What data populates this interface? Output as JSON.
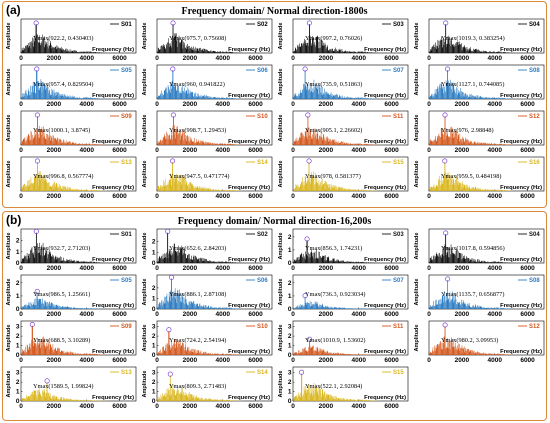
{
  "panels": [
    {
      "label": "(a)",
      "title": "Frequency domain/ Normal direction-1800s",
      "ylabel": "Amplitude",
      "xlabel": "Frequency (Hz)",
      "x_ticks": [
        "0",
        "2000",
        "4000",
        "6000"
      ],
      "cells": [
        {
          "name": "S01",
          "ymax_label": "Ymax(922.2, 0.430403)",
          "peak_x": 922.2,
          "peak_y": 0.430403,
          "y_ticks": [],
          "color": "#111111"
        },
        {
          "name": "S02",
          "ymax_label": "Ymax(975.7, 0.75608)",
          "peak_x": 975.7,
          "peak_y": 0.75608,
          "y_ticks": [],
          "color": "#111111"
        },
        {
          "name": "S03",
          "ymax_label": "Ymax(997.2, 0.76026)",
          "peak_x": 997.2,
          "peak_y": 0.76026,
          "y_ticks": [],
          "color": "#111111"
        },
        {
          "name": "S04",
          "ymax_label": "Ymax(1019.3, 0.383254)",
          "peak_x": 1019.3,
          "peak_y": 0.383254,
          "y_ticks": [],
          "color": "#111111"
        },
        {
          "name": "S05",
          "ymax_label": "Ymax(957.4, 0.829504)",
          "peak_x": 957.4,
          "peak_y": 0.829504,
          "y_ticks": [],
          "color": "#2b7bc2"
        },
        {
          "name": "S06",
          "ymax_label": "Ymax(960, 0.941822)",
          "peak_x": 960,
          "peak_y": 0.941822,
          "y_ticks": [],
          "color": "#2b7bc2"
        },
        {
          "name": "S07",
          "ymax_label": "Ymax(735.9, 0.51863)",
          "peak_x": 735.9,
          "peak_y": 0.51863,
          "y_ticks": [],
          "color": "#2b7bc2"
        },
        {
          "name": "S08",
          "ymax_label": "Ymax(1127.1, 0.744085)",
          "peak_x": 1127.1,
          "peak_y": 0.744085,
          "y_ticks": [],
          "color": "#2b7bc2"
        },
        {
          "name": "S09",
          "ymax_label": "Ymax(1000.1, 3.8745)",
          "peak_x": 1000.1,
          "peak_y": 3.8745,
          "y_ticks": [],
          "color": "#d4561b"
        },
        {
          "name": "S10",
          "ymax_label": "Ymax(998.7, 1.29453)",
          "peak_x": 998.7,
          "peak_y": 1.29453,
          "y_ticks": [],
          "color": "#d4561b"
        },
        {
          "name": "S11",
          "ymax_label": "Ymax(905.1, 2.26602)",
          "peak_x": 905.1,
          "peak_y": 2.26602,
          "y_ticks": [],
          "color": "#d4561b"
        },
        {
          "name": "S12",
          "ymax_label": "Ymax(976, 2.98848)",
          "peak_x": 976,
          "peak_y": 2.98848,
          "y_ticks": [],
          "color": "#d4561b"
        },
        {
          "name": "S13",
          "ymax_label": "Ymax(996.8, 0.567774)",
          "peak_x": 996.8,
          "peak_y": 0.567774,
          "y_ticks": [],
          "color": "#d9b51a"
        },
        {
          "name": "S14",
          "ymax_label": "Ymax(947.5, 0.471774)",
          "peak_x": 947.5,
          "peak_y": 0.471774,
          "y_ticks": [],
          "color": "#d9b51a"
        },
        {
          "name": "S15",
          "ymax_label": "Ymax(978, 0.581377)",
          "peak_x": 978,
          "peak_y": 0.581377,
          "y_ticks": [],
          "color": "#d9b51a"
        },
        {
          "name": "S16",
          "ymax_label": "Ymax(959.5, 0.484198)",
          "peak_x": 959.5,
          "peak_y": 0.484198,
          "y_ticks": [],
          "color": "#d9b51a"
        }
      ]
    },
    {
      "label": "(b)",
      "title": "Frequency domain/ Normal direction-16,200s",
      "ylabel": "Amplitude",
      "xlabel": "Frequency (Hz)",
      "x_ticks": [
        "0",
        "2000",
        "4000",
        "6000"
      ],
      "cells": [
        {
          "name": "S01",
          "ymax_label": "Ymax(932.7, 2.71203)",
          "peak_x": 932.7,
          "peak_y": 2.71203,
          "y_ticks": [
            "0",
            "1",
            "2"
          ],
          "color": "#111111"
        },
        {
          "name": "S02",
          "ymax_label": "Ymax(652.6, 2.84203)",
          "peak_x": 652.6,
          "peak_y": 2.84203,
          "y_ticks": [
            "0",
            "1",
            "2"
          ],
          "color": "#111111"
        },
        {
          "name": "S03",
          "ymax_label": "Ymax(856.3, 1.74231)",
          "peak_x": 856.3,
          "peak_y": 1.74231,
          "y_ticks": [
            "0",
            "1",
            "2"
          ],
          "color": "#111111"
        },
        {
          "name": "S04",
          "ymax_label": "Ymax(1017.8, 0.594856)",
          "peak_x": 1017.8,
          "peak_y": 0.594856,
          "y_ticks": [],
          "color": "#111111"
        },
        {
          "name": "S05",
          "ymax_label": "Ymax(986.5, 1.25661)",
          "peak_x": 986.5,
          "peak_y": 1.25661,
          "y_ticks": [
            "0",
            "1",
            "2"
          ],
          "color": "#2b7bc2"
        },
        {
          "name": "S06",
          "ymax_label": "Ymax(886.1, 2.87108)",
          "peak_x": 886.1,
          "peak_y": 2.87108,
          "y_ticks": [
            "0",
            "1",
            "2"
          ],
          "color": "#2b7bc2"
        },
        {
          "name": "S07",
          "ymax_label": "Ymax(736.3, 0.923034)",
          "peak_x": 736.3,
          "peak_y": 0.923034,
          "y_ticks": [
            "0",
            "1",
            "2"
          ],
          "color": "#2b7bc2"
        },
        {
          "name": "S08",
          "ymax_label": "Ymax(1135.7, 0.656877)",
          "peak_x": 1135.7,
          "peak_y": 0.656877,
          "y_ticks": [],
          "color": "#2b7bc2"
        },
        {
          "name": "S09",
          "ymax_label": "Ymax(688.5, 3.10289)",
          "peak_x": 688.5,
          "peak_y": 3.10289,
          "y_ticks": [
            "0",
            "1",
            "2",
            "3"
          ],
          "color": "#d4561b"
        },
        {
          "name": "S10",
          "ymax_label": "Ymax(724.2, 2.54194)",
          "peak_x": 724.2,
          "peak_y": 2.54194,
          "y_ticks": [
            "0",
            "1",
            "2",
            "3"
          ],
          "color": "#d4561b"
        },
        {
          "name": "S11",
          "ymax_label": "Ymax(1010.9, 1.53602)",
          "peak_x": 1010.9,
          "peak_y": 1.53602,
          "y_ticks": [
            "0",
            "1",
            "2",
            "3"
          ],
          "color": "#d4561b"
        },
        {
          "name": "S12",
          "ymax_label": "Ymax(980.2, 3.09953)",
          "peak_x": 980.2,
          "peak_y": 3.09953,
          "y_ticks": [],
          "color": "#d4561b"
        },
        {
          "name": "S13",
          "ymax_label": "Ymax(1589.5, 1.99824)",
          "peak_x": 1589.5,
          "peak_y": 1.99824,
          "y_ticks": [
            "0",
            "1",
            "2",
            "3"
          ],
          "color": "#d9b51a"
        },
        {
          "name": "S14",
          "ymax_label": "Ymax(809.3, 2.71483)",
          "peak_x": 809.3,
          "peak_y": 2.71483,
          "y_ticks": [
            "0",
            "1",
            "2",
            "3"
          ],
          "color": "#d9b51a"
        },
        {
          "name": "S15",
          "ymax_label": "Ymax(522.1, 2.92084)",
          "peak_x": 522.1,
          "peak_y": 2.92084,
          "y_ticks": [
            "0",
            "1",
            "2",
            "3"
          ],
          "color": "#d9b51a"
        }
      ]
    }
  ],
  "chart_data": {
    "type": "area",
    "x_range": [
      0,
      7000
    ],
    "panels": [
      {
        "title": "Frequency domain/ Normal direction-1800s",
        "xlabel": "Frequency (Hz)",
        "ylabel": "Amplitude",
        "series": [
          {
            "name": "S01",
            "peak": [
              922.2,
              0.430403
            ]
          },
          {
            "name": "S02",
            "peak": [
              975.7,
              0.75608
            ]
          },
          {
            "name": "S03",
            "peak": [
              997.2,
              0.76026
            ]
          },
          {
            "name": "S04",
            "peak": [
              1019.3,
              0.383254
            ]
          },
          {
            "name": "S05",
            "peak": [
              957.4,
              0.829504
            ]
          },
          {
            "name": "S06",
            "peak": [
              960,
              0.941822
            ]
          },
          {
            "name": "S07",
            "peak": [
              735.9,
              0.51863
            ]
          },
          {
            "name": "S08",
            "peak": [
              1127.1,
              0.744085
            ]
          },
          {
            "name": "S09",
            "peak": [
              1000.1,
              3.8745
            ]
          },
          {
            "name": "S10",
            "peak": [
              998.7,
              1.29453
            ]
          },
          {
            "name": "S11",
            "peak": [
              905.1,
              2.26602
            ]
          },
          {
            "name": "S12",
            "peak": [
              976,
              2.98848
            ]
          },
          {
            "name": "S13",
            "peak": [
              996.8,
              0.567774
            ]
          },
          {
            "name": "S14",
            "peak": [
              947.5,
              0.471774
            ]
          },
          {
            "name": "S15",
            "peak": [
              978,
              0.581377
            ]
          },
          {
            "name": "S16",
            "peak": [
              959.5,
              0.484198
            ]
          }
        ]
      },
      {
        "title": "Frequency domain/ Normal direction-16,200s",
        "xlabel": "Frequency (Hz)",
        "ylabel": "Amplitude",
        "series": [
          {
            "name": "S01",
            "peak": [
              932.7,
              2.71203
            ]
          },
          {
            "name": "S02",
            "peak": [
              652.6,
              2.84203
            ]
          },
          {
            "name": "S03",
            "peak": [
              856.3,
              1.74231
            ]
          },
          {
            "name": "S04",
            "peak": [
              1017.8,
              0.594856
            ]
          },
          {
            "name": "S05",
            "peak": [
              986.5,
              1.25661
            ]
          },
          {
            "name": "S06",
            "peak": [
              886.1,
              2.87108
            ]
          },
          {
            "name": "S07",
            "peak": [
              736.3,
              0.923034
            ]
          },
          {
            "name": "S08",
            "peak": [
              1135.7,
              0.656877
            ]
          },
          {
            "name": "S09",
            "peak": [
              688.5,
              3.10289
            ]
          },
          {
            "name": "S10",
            "peak": [
              724.2,
              2.54194
            ]
          },
          {
            "name": "S11",
            "peak": [
              1010.9,
              1.53602
            ]
          },
          {
            "name": "S12",
            "peak": [
              980.2,
              3.09953
            ]
          },
          {
            "name": "S13",
            "peak": [
              1589.5,
              1.99824
            ]
          },
          {
            "name": "S14",
            "peak": [
              809.3,
              2.71483
            ]
          },
          {
            "name": "S15",
            "peak": [
              522.1,
              2.92084
            ]
          }
        ]
      }
    ]
  }
}
